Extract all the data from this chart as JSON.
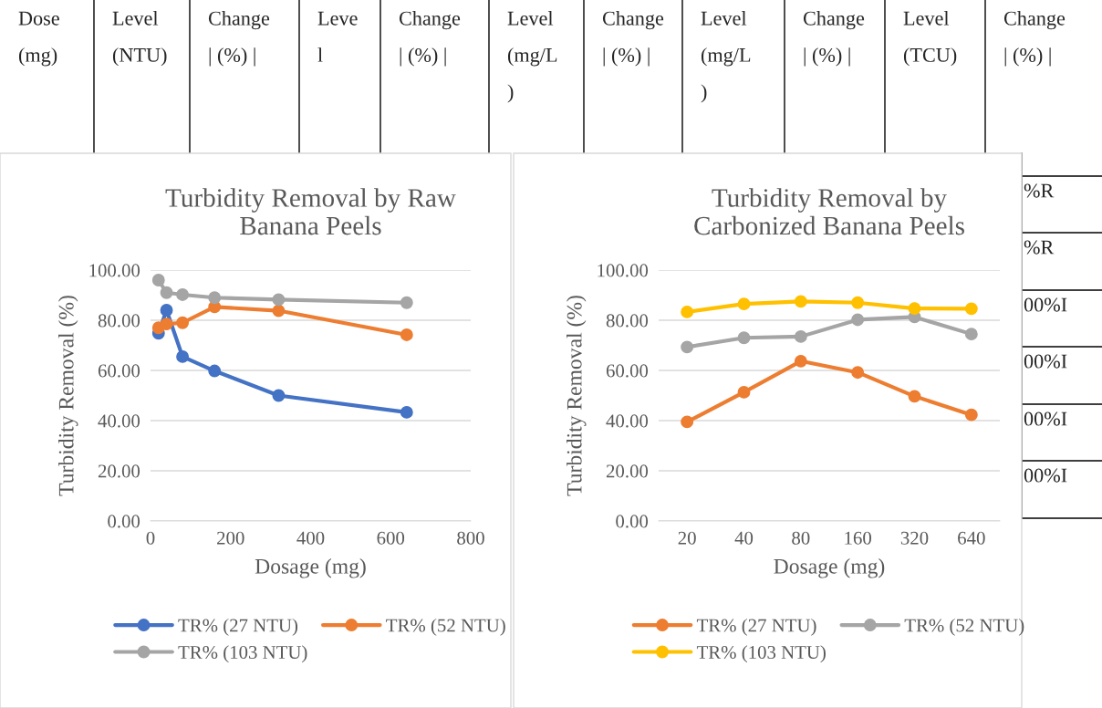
{
  "chart_data": [
    {
      "type": "line",
      "title": "Turbidity Removal by Raw Banana Peels",
      "xlabel": "Dosage (mg)",
      "ylabel": "Turbidity Removal (%)",
      "x": [
        20,
        40,
        80,
        160,
        320,
        640
      ],
      "xlim": [
        0,
        800
      ],
      "xticks": [
        0,
        200,
        400,
        600,
        800
      ],
      "ylim": [
        0,
        100
      ],
      "yticks": [
        {
          "value": 0,
          "label": "0.00"
        },
        {
          "value": 20,
          "label": "20.00"
        },
        {
          "value": 40,
          "label": "40.00"
        },
        {
          "value": 60,
          "label": "60.00"
        },
        {
          "value": 80,
          "label": "80.00"
        },
        {
          "value": 100,
          "label": "100.00"
        }
      ],
      "grid": "y",
      "legend": "bottom",
      "marker": "circle",
      "line_style": "solid",
      "series": [
        {
          "name": "TR% (27 NTU)",
          "color": "#4472c4",
          "values": [
            74.8,
            84,
            65.5,
            59.8,
            50,
            43.3
          ]
        },
        {
          "name": "TR% (52 NTU)",
          "color": "#ed7d31",
          "values": [
            77,
            78.5,
            79,
            85.3,
            83.8,
            74.2
          ]
        },
        {
          "name": "TR% (103 NTU)",
          "color": "#a5a5a5",
          "values": [
            96,
            91,
            90.2,
            89,
            88.2,
            87
          ]
        }
      ]
    },
    {
      "type": "line",
      "title": "Turbidity Removal by Carbonized Banana Peels",
      "xlabel": "Dosage (mg)",
      "ylabel": "Turbidity Removal (%)",
      "categories": [
        "20",
        "40",
        "80",
        "160",
        "320",
        "640"
      ],
      "ylim": [
        0,
        100
      ],
      "yticks": [
        {
          "value": 0,
          "label": "0.00"
        },
        {
          "value": 20,
          "label": "20.00"
        },
        {
          "value": 40,
          "label": "40.00"
        },
        {
          "value": 60,
          "label": "60.00"
        },
        {
          "value": 80,
          "label": "80.00"
        },
        {
          "value": 100,
          "label": "100.00"
        }
      ],
      "grid": "y",
      "legend": "bottom",
      "marker": "circle",
      "line_style": "solid",
      "series": [
        {
          "name": "TR% (27 NTU)",
          "color": "#ed7d31",
          "values": [
            39.5,
            51.3,
            63.7,
            59.2,
            49.7,
            42.3
          ]
        },
        {
          "name": "TR% (52 NTU)",
          "color": "#a5a5a5",
          "values": [
            69.3,
            73,
            73.5,
            80.2,
            81.3,
            74.5
          ]
        },
        {
          "name": "TR% (103 NTU)",
          "color": "#ffc000",
          "values": [
            83.3,
            86.5,
            87.5,
            87,
            84.7,
            84.6
          ]
        }
      ]
    },
    {
      "type": "other",
      "annotations": [
        "Dose\n(mg)",
        "Level\n(NTU)",
        "Change\n| (%) |",
        "Leve\nl",
        "Change\n| (%) |",
        "Level\n(mg/L\n)",
        "Change\n| (%) |",
        "Level\n(mg/L\n)",
        "Change\n| (%) |",
        "Level\n(TCU)",
        "Change\n| (%) |",
        "%R",
        "%R",
        "00%I",
        "00%I",
        "00%I",
        "00%I"
      ]
    }
  ]
}
